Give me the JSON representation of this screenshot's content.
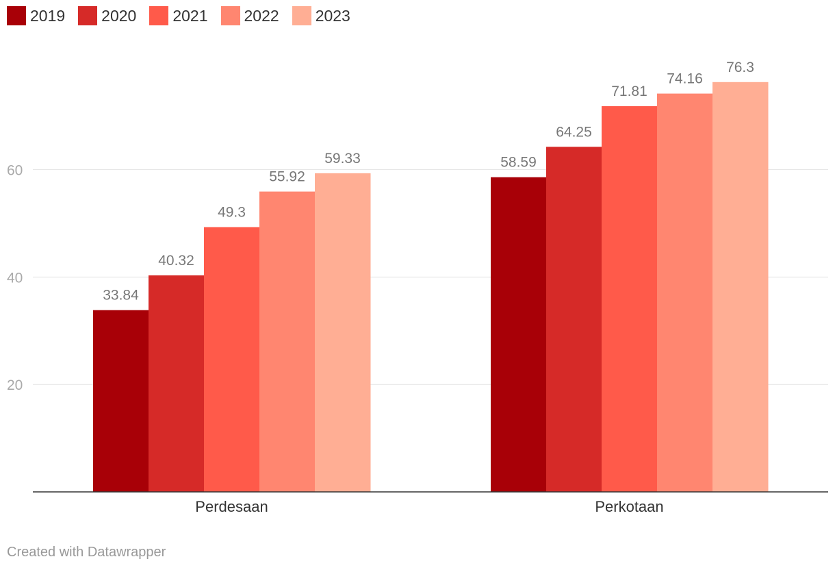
{
  "chart_data": {
    "type": "bar",
    "categories": [
      "Perdesaan",
      "Perkotaan"
    ],
    "series": [
      {
        "name": "2019",
        "color": "#a80007",
        "values": [
          33.84,
          58.59
        ]
      },
      {
        "name": "2020",
        "color": "#d62a28",
        "values": [
          40.32,
          64.25
        ]
      },
      {
        "name": "2021",
        "color": "#ff5a4a",
        "values": [
          49.3,
          71.81
        ]
      },
      {
        "name": "2022",
        "color": "#ff8670",
        "values": [
          55.92,
          74.16
        ]
      },
      {
        "name": "2023",
        "color": "#ffae94",
        "values": [
          59.33,
          76.3
        ]
      }
    ],
    "data_labels": [
      [
        "33.84",
        "58.59"
      ],
      [
        "40.32",
        "64.25"
      ],
      [
        "49.3",
        "71.81"
      ],
      [
        "55.92",
        "74.16"
      ],
      [
        "59.33",
        "76.3"
      ]
    ],
    "yticks": [
      "20",
      "40",
      "60"
    ],
    "ylim": [
      0,
      78
    ],
    "grid": true,
    "legend_position": "top-left"
  },
  "footer": {
    "credit": "Created with Datawrapper"
  }
}
